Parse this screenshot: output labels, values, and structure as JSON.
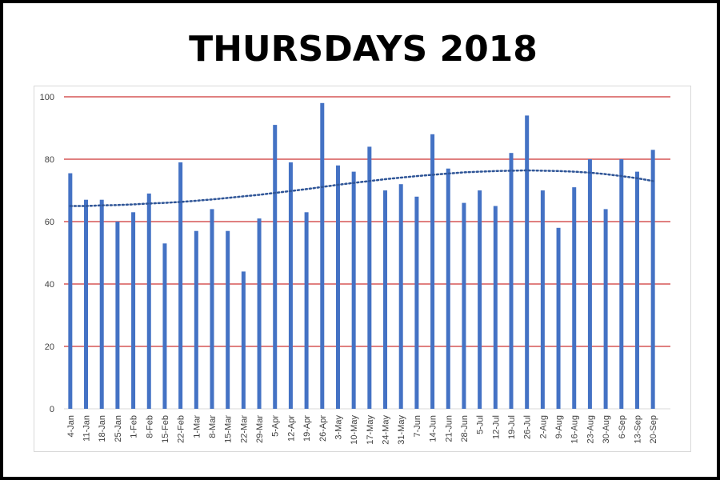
{
  "title": "THURSDAYS 2018",
  "chart_data": {
    "type": "bar",
    "title": "THURSDAYS 2018",
    "xlabel": "",
    "ylabel": "",
    "ylim": [
      0,
      100
    ],
    "yticks": [
      0,
      20,
      40,
      60,
      80,
      100
    ],
    "grid": true,
    "legend": "none",
    "trendline": "polynomial (dotted)",
    "colors": {
      "bar": "#4472c4",
      "grid": "#c00000",
      "trend": "#2f5597"
    },
    "categories": [
      "4-Jan",
      "11-Jan",
      "18-Jan",
      "25-Jan",
      "1-Feb",
      "8-Feb",
      "15-Feb",
      "22-Feb",
      "1-Mar",
      "8-Mar",
      "15-Mar",
      "22-Mar",
      "29-Mar",
      "5-Apr",
      "12-Apr",
      "19-Apr",
      "26-Apr",
      "3-May",
      "10-May",
      "17-May",
      "24-May",
      "31-May",
      "7-Jun",
      "14-Jun",
      "21-Jun",
      "28-Jun",
      "5-Jul",
      "12-Jul",
      "19-Jul",
      "26-Jul",
      "2-Aug",
      "9-Aug",
      "16-Aug",
      "23-Aug",
      "30-Aug",
      "6-Sep",
      "13-Sep",
      "20-Sep"
    ],
    "values": [
      75.5,
      67,
      67,
      60,
      63,
      69,
      53,
      79,
      57,
      64,
      57,
      44,
      61,
      91,
      79,
      63,
      98,
      78,
      76,
      84,
      70,
      72,
      68,
      88,
      77,
      66,
      70,
      65,
      82,
      94,
      70,
      58,
      71,
      80,
      64,
      80,
      76,
      83
    ],
    "trend_values": [
      65,
      65,
      65.2,
      65.3,
      65.5,
      65.8,
      66,
      66.3,
      66.7,
      67.1,
      67.6,
      68.1,
      68.6,
      69.2,
      69.8,
      70.4,
      71.1,
      71.8,
      72.4,
      73,
      73.6,
      74.1,
      74.6,
      75,
      75.4,
      75.8,
      76,
      76.2,
      76.3,
      76.4,
      76.3,
      76.2,
      76,
      75.7,
      75.2,
      74.6,
      73.9,
      73
    ]
  }
}
